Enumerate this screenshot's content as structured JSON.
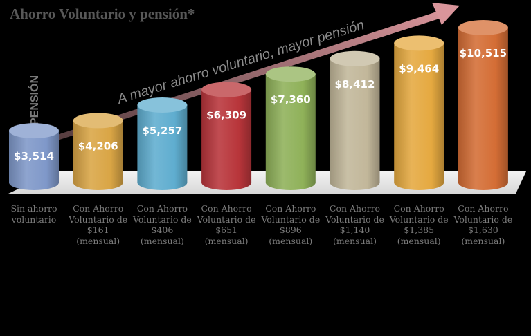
{
  "chart_data": {
    "type": "bar",
    "title": "Ahorro Voluntario y pensión*",
    "ylabel": "PENSIÓN",
    "annotation": "A mayor ahorro voluntario, mayor pensión",
    "categories": [
      "Sin ahorro\nvoluntario",
      "Con Ahorro\nVoluntario de\n$161\n(mensual)",
      "Con Ahorro\nVoluntario de\n$406\n(mensual)",
      "Con Ahorro\nVoluntario de\n$651\n(mensual)",
      "Con Ahorro\nVoluntario de\n$896\n(mensual)",
      "Con Ahorro\nVoluntario de\n$1,140\n(mensual)",
      "Con Ahorro\nVoluntario de\n$1,385\n(mensual)",
      "Con Ahorro\nVoluntario de\n$1,630\n(mensual)"
    ],
    "values": [
      3514,
      4206,
      5257,
      6309,
      7360,
      8412,
      9464,
      10515
    ],
    "value_labels": [
      "$3,514",
      "$4,206",
      "$5,257",
      "$6,309",
      "$7,360",
      "$8,412",
      "$9,464",
      "$10,515"
    ],
    "colors": [
      "#7f98c9",
      "#d9a545",
      "#5fadcf",
      "#b8353a",
      "#8fb159",
      "#c2b79a",
      "#e5a940",
      "#d46d35"
    ],
    "legend": false,
    "grid": false
  }
}
